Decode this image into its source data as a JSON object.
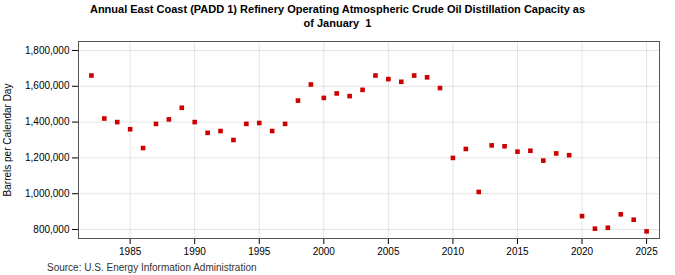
{
  "chart_data": {
    "type": "scatter",
    "title": "Annual East Coast (PADD 1) Refinery Operating Atmospheric Crude Oil Distillation Capacity as\nof January  1",
    "ylabel": "Barrels per Calendar Day",
    "annotations": [
      "Source: U.S. Energy Information Administration"
    ],
    "x": [
      1982,
      1983,
      1984,
      1985,
      1986,
      1987,
      1988,
      1989,
      1990,
      1991,
      1992,
      1993,
      1994,
      1995,
      1996,
      1997,
      1998,
      1999,
      2000,
      2001,
      2002,
      2003,
      2004,
      2005,
      2006,
      2007,
      2008,
      2009,
      2010,
      2011,
      2012,
      2013,
      2014,
      2015,
      2016,
      2017,
      2018,
      2019,
      2020,
      2021,
      2022,
      2023,
      2024,
      2025
    ],
    "values": [
      1660000,
      1420000,
      1400000,
      1360000,
      1255000,
      1390000,
      1415000,
      1480000,
      1400000,
      1340000,
      1350000,
      1300000,
      1390000,
      1395000,
      1350000,
      1390000,
      1520000,
      1610000,
      1535000,
      1560000,
      1545000,
      1580000,
      1660000,
      1640000,
      1625000,
      1660000,
      1650000,
      1590000,
      1200000,
      1250000,
      1010000,
      1270000,
      1265000,
      1235000,
      1240000,
      1185000,
      1225000,
      1215000,
      875000,
      805000,
      810000,
      885000,
      855000,
      790000
    ],
    "color": "#cc0000",
    "marker": "square",
    "xlim": [
      1981,
      2026
    ],
    "xticks": [
      1985,
      1990,
      1995,
      2000,
      2005,
      2010,
      2015,
      2020,
      2025
    ],
    "ylim": [
      750000,
      1850000
    ],
    "yticks": [
      {
        "value": 800000,
        "label": "800,000"
      },
      {
        "value": 1000000,
        "label": "1,000,000"
      },
      {
        "value": 1200000,
        "label": "1,200,000"
      },
      {
        "value": 1400000,
        "label": "1,400,000"
      },
      {
        "value": 1600000,
        "label": "1,600,000"
      },
      {
        "value": 1800000,
        "label": "1,800,000"
      }
    ],
    "grid": true
  }
}
